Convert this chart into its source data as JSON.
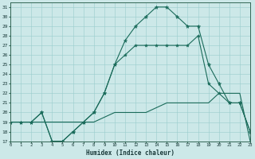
{
  "xlabel": "Humidex (Indice chaleur)",
  "background_color": "#cce8e8",
  "grid_color": "#99cccc",
  "line_color": "#1a6b5a",
  "xlim": [
    0,
    23
  ],
  "ylim": [
    17,
    31.5
  ],
  "xticks": [
    0,
    1,
    2,
    3,
    4,
    5,
    6,
    7,
    8,
    9,
    10,
    11,
    12,
    13,
    14,
    15,
    16,
    17,
    18,
    19,
    20,
    21,
    22,
    23
  ],
  "yticks": [
    17,
    18,
    19,
    20,
    21,
    22,
    23,
    24,
    25,
    26,
    27,
    28,
    29,
    30,
    31
  ],
  "hours": [
    0,
    1,
    2,
    3,
    4,
    5,
    6,
    7,
    8,
    9,
    10,
    11,
    12,
    13,
    14,
    15,
    16,
    17,
    18,
    19,
    20,
    21,
    22,
    23
  ],
  "line1": [
    19,
    19,
    19,
    20,
    17,
    17,
    18,
    19,
    20,
    22,
    25,
    27.5,
    29,
    30,
    31,
    31,
    30,
    29,
    29,
    25,
    23,
    21,
    21,
    18
  ],
  "line2": [
    19,
    19,
    19,
    20,
    17,
    17,
    18,
    19,
    20,
    22,
    25,
    26,
    27,
    27,
    27,
    27,
    27,
    27,
    28,
    23,
    22,
    21,
    21,
    18
  ],
  "line3": [
    19,
    19,
    19,
    19,
    19,
    19,
    19,
    19,
    19,
    19.5,
    20,
    20,
    20,
    20,
    20.5,
    21,
    21,
    21,
    21,
    21,
    22,
    22,
    22,
    17
  ]
}
